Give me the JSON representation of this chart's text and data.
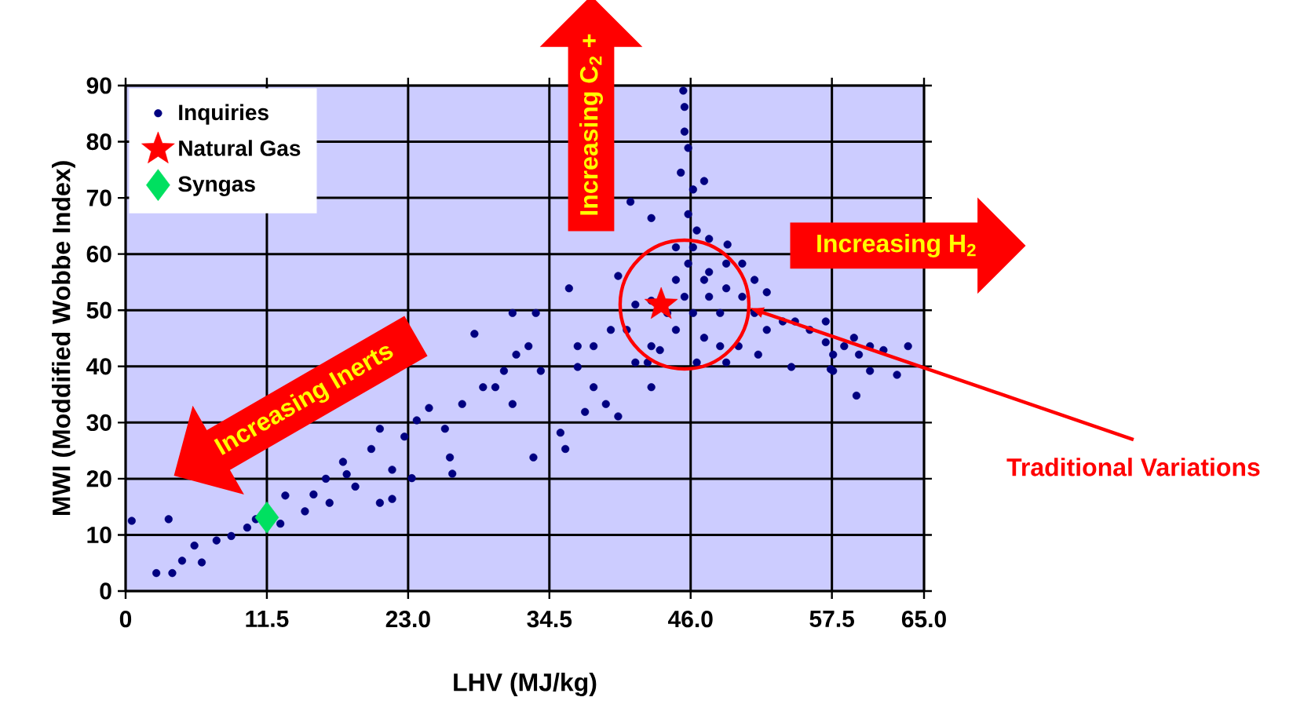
{
  "chart_data": {
    "type": "scatter",
    "xlabel": "LHV (MJ/kg)",
    "ylabel": "MWI (Moddified Wobbe Index)",
    "xlim": [
      0,
      65
    ],
    "ylim": [
      0,
      90
    ],
    "xticks": [
      0,
      {
        "value": 11.5,
        "label": "11.5"
      },
      {
        "value": 23,
        "label": "23.0"
      },
      {
        "value": 34.5,
        "label": "34.5"
      },
      {
        "value": 46,
        "label": "46.0"
      },
      {
        "value": 57.5,
        "label": "57.5"
      },
      {
        "value": 65,
        "label": "65.0"
      }
    ],
    "yticks": [
      0,
      10,
      20,
      30,
      40,
      50,
      60,
      70,
      80,
      90
    ],
    "grid": true,
    "legend": "top left",
    "series": [
      {
        "name": "Inquiries",
        "color": "#000080",
        "marker": "circle",
        "x": [
          2.5,
          3.8,
          4.6,
          6.2,
          5.6,
          7.4,
          8.6,
          9.9,
          10.6,
          0.5,
          3.5,
          12.6,
          13,
          14.6,
          15.3,
          16.6,
          16.3,
          18,
          18.7,
          17.7,
          20,
          20.7,
          21.7,
          20.7,
          21.7,
          23.3,
          22.7,
          23.7,
          24.7,
          26.4,
          26.6,
          26,
          27.4,
          28.4,
          29.1,
          30.1,
          30.8,
          31.5,
          31.8,
          33.2,
          33.8,
          32.8,
          31.5,
          33.4,
          35.4,
          35.8,
          36.1,
          36.8,
          37.4,
          38.1,
          39.1,
          40.1,
          36.8,
          38.1,
          39.5,
          40.8,
          40.1,
          41.5,
          42.8,
          41.1,
          42.8,
          42.8,
          42.8,
          41.5,
          43.5,
          44.8,
          45.4,
          45.5,
          45.5,
          45.8,
          45.2,
          46.2,
          45.8,
          47.1,
          46.5,
          46.2,
          47.5,
          49,
          45.8,
          44.8,
          47.1,
          47.5,
          48.4,
          46.2,
          44.8,
          47.1,
          48.4,
          46.5,
          48.9,
          44.1,
          45.5,
          47.5,
          48.9,
          50.2,
          51.2,
          52.2,
          51.2,
          52.2,
          53.5,
          54.5,
          55.7,
          57,
          57,
          57.6,
          58.5,
          59.3,
          59.5,
          59.7,
          60.6,
          60.6,
          61.7,
          62.8,
          63.7,
          54.2,
          57.4,
          57.6,
          51.5,
          49.9,
          42.5,
          48.9,
          50.2
        ],
        "values": [
          3.2,
          3.2,
          5.4,
          5.1,
          8.1,
          9,
          9.8,
          11.3,
          12.8,
          12.5,
          12.8,
          12,
          17,
          14.2,
          17.2,
          15.7,
          20,
          20.8,
          18.6,
          23,
          25.3,
          28.9,
          21.6,
          15.7,
          16.4,
          20.1,
          27.5,
          30.4,
          32.6,
          23.8,
          20.9,
          28.9,
          33.3,
          45.8,
          36.3,
          36.3,
          39.2,
          33.3,
          42.1,
          23.8,
          39.2,
          43.6,
          49.5,
          49.5,
          28.2,
          25.3,
          53.9,
          39.9,
          31.9,
          36.3,
          33.3,
          31.1,
          43.6,
          43.6,
          46.5,
          46.5,
          56.1,
          51,
          66.4,
          69.3,
          51.7,
          36.3,
          43.6,
          40.7,
          42.9,
          61.2,
          89.1,
          86.2,
          81.8,
          78.9,
          74.5,
          71.5,
          67.1,
          73,
          64.2,
          61.2,
          62.7,
          61.7,
          58.3,
          55.4,
          55.4,
          52.4,
          49.5,
          49.5,
          46.5,
          45.1,
          43.6,
          40.7,
          40.7,
          49.5,
          52.4,
          56.8,
          53.9,
          52.4,
          55.4,
          53.2,
          49.5,
          46.5,
          48,
          48,
          46.5,
          48,
          44.3,
          42.1,
          43.6,
          45.1,
          34.8,
          42.1,
          43.6,
          39.2,
          42.9,
          38.5,
          43.6,
          39.9,
          39.5,
          39.2,
          42.1,
          43.6,
          40.7,
          58.3,
          58.3
        ]
      },
      {
        "name": "Natural Gas",
        "color": "#ff0000",
        "marker": "star",
        "x": [
          43.6
        ],
        "values": [
          51
        ]
      },
      {
        "name": "Syngas",
        "color": "#00e060",
        "marker": "diamond",
        "x": [
          11.5
        ],
        "values": [
          13.1
        ]
      }
    ],
    "annotations": [
      "Increasing C$_{2}$ +",
      "Increasing H$_{2}$",
      "Increasing Inerts",
      "Traditional Variations"
    ]
  }
}
